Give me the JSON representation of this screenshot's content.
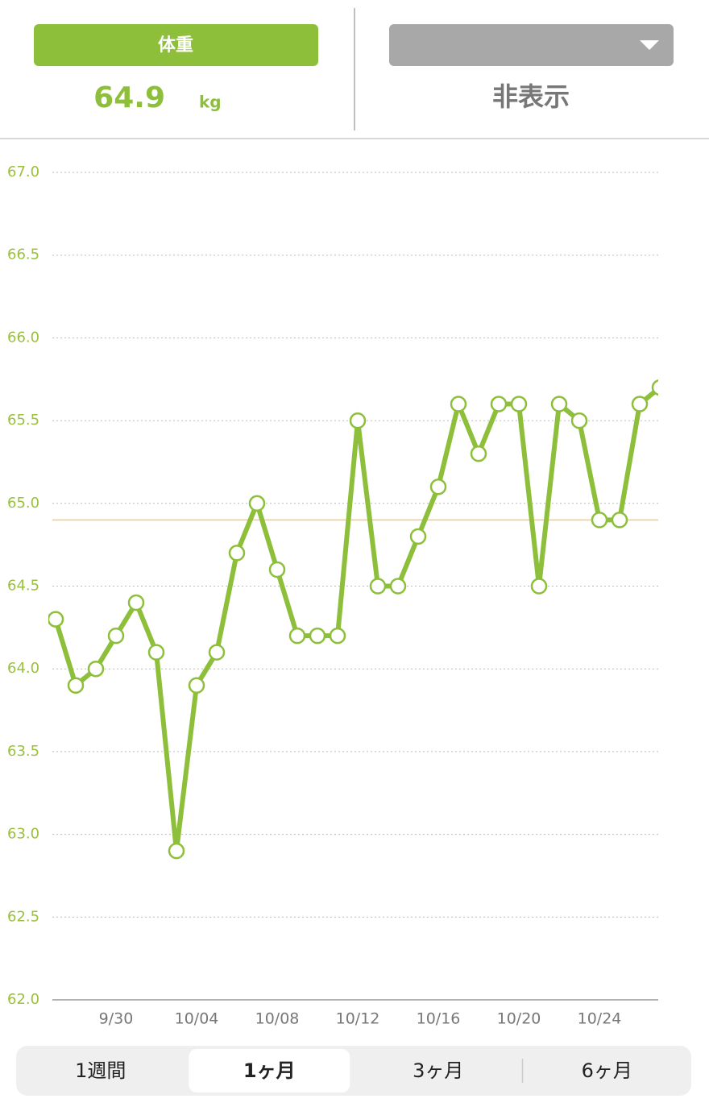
{
  "header": {
    "tab": "体重",
    "value": "64.9",
    "unit": "kg",
    "other": "非表示"
  },
  "chart_data": {
    "type": "line",
    "categories": [
      null,
      null,
      null,
      "9/30",
      null,
      null,
      null,
      "10/04",
      null,
      null,
      null,
      "10/08",
      null,
      null,
      null,
      "10/12",
      null,
      null,
      null,
      "10/16",
      null,
      null,
      null,
      "10/20",
      null,
      null,
      null,
      "10/24",
      null,
      null,
      null
    ],
    "values": [
      64.3,
      63.9,
      64.0,
      64.2,
      64.4,
      64.1,
      62.9,
      63.9,
      64.1,
      64.7,
      65.0,
      64.6,
      64.2,
      64.2,
      64.2,
      65.5,
      64.5,
      64.5,
      64.8,
      65.1,
      65.6,
      65.3,
      65.6,
      65.6,
      64.5,
      65.6,
      65.5,
      64.9,
      64.9,
      65.6,
      65.7
    ],
    "color": "#8dbf3a",
    "reference_line": 64.9,
    "reference_color": "#f7c97a",
    "ylim": [
      62.0,
      67.0
    ],
    "yticks": [
      {
        "value": 62,
        "label": "62.0"
      },
      {
        "value": 62.5,
        "label": "62.5"
      },
      {
        "value": 63,
        "label": "63.0"
      },
      {
        "value": 63.5,
        "label": "63.5"
      },
      {
        "value": 64,
        "label": "64.0"
      },
      {
        "value": 64.5,
        "label": "64.5"
      },
      {
        "value": 65,
        "label": "65.0"
      },
      {
        "value": 65.5,
        "label": "65.5"
      },
      {
        "value": 66,
        "label": "66.0"
      },
      {
        "value": 66.5,
        "label": "66.5"
      },
      {
        "value": 67,
        "label": "67.0"
      }
    ],
    "grid": true
  },
  "tabs": {
    "items": [
      "1週間",
      "1ヶ月",
      "3ヶ月",
      "6ヶ月"
    ],
    "selected": 1
  }
}
